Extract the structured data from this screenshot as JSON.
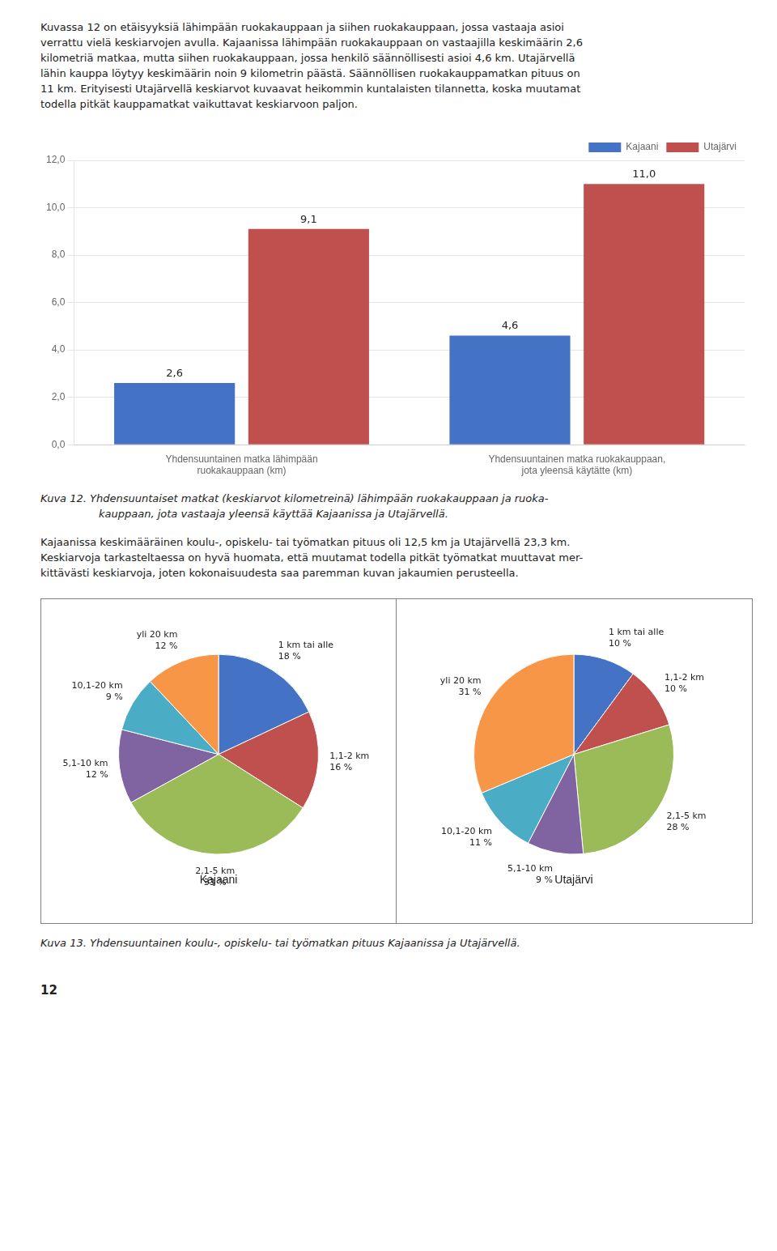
{
  "chart_data": [
    {
      "type": "bar",
      "title": [
        "Kuva 12. Yhdensuuntaiset matkat (keskiarvot kilometreinä) lähimpään ruokakauppaan ja ruoka-",
        "kauppaan, jota vastaaja yleensä käyttää Kajaanissa ja Utajärvellä."
      ],
      "annotations": [
        "Kuvassa 12 on etäisyyksiä lähimpään ruokakauppaan ja siihen ruokakauppaan, jossa vastaaja asioi",
        "verrattu vielä keskiarvojen avulla. Kajaanissa lähimpään ruokakauppaan on vastaajilla keskimäärin 2,6",
        "kilometriä matkaa, mutta siihen ruokakauppaan, jossa henkilö säännöllisesti asioi 4,6 km. Utajärvellä",
        "lähin kauppa löytyy keskimäärin noin 9 kilometrin päästä. Säännöllisen ruokakauppamatkan pituus on",
        "11 km. Erityisesti Utajärvellä keskiarvot kuvaavat heikommin kuntalaisten tilannetta, koska muutamat",
        "todella pitkät kauppamatkat vaikuttavat keskiarvoon paljon."
      ],
      "categories": [
        "Yhdensuuntainen matka lähimpään\nruokakauppaan (km)",
        "Yhdensuuntainen matka ruokakauppaan,\njota yleensä käytätte (km)"
      ],
      "series": [
        {
          "name": "Kajaani",
          "color": "#4472C4",
          "values": [
            2.6,
            4.6
          ],
          "value_labels": [
            "2,6",
            "4,6"
          ]
        },
        {
          "name": "Utajärvi",
          "color": "#C0504D",
          "values": [
            9.1,
            11.0
          ],
          "value_labels": [
            "9,1",
            "11,0"
          ]
        }
      ],
      "ylim": [
        0,
        12
      ],
      "yticks": [
        {
          "value": 0,
          "label": "0,0"
        },
        {
          "value": 2,
          "label": "2,0"
        },
        {
          "value": 4,
          "label": "4,0"
        },
        {
          "value": 6,
          "label": "6,0"
        },
        {
          "value": 8,
          "label": "8,0"
        },
        {
          "value": 10,
          "label": "10,0"
        },
        {
          "value": 12,
          "label": "12,0"
        }
      ],
      "grid": true,
      "legend": "upper right",
      "data_labels": true
    },
    {
      "type": "pie",
      "title": "Kajaani",
      "annotations": [
        "Kajaanissa keskimääräinen koulu-, opiskelu- tai työmatkan pituus oli 12,5 km ja Utajärvellä 23,3 km.",
        "Keskiarvoja tarkasteltaessa on hyvä huomata, että muutamat todella pitkät työmatkat muuttavat mer-",
        "kittävästi keskiarvoja, joten kokonaisuudesta saa paremman kuvan jakaumien perusteella."
      ],
      "categories": [
        "1 km tai alle",
        "1,1-2 km",
        "2,1-5 km",
        "5,1-10 km",
        "10,1-20 km",
        "yli 20 km"
      ],
      "values": [
        18,
        16,
        33,
        12,
        9,
        12
      ],
      "value_labels": [
        "18 %",
        "16 %",
        "33 %",
        "12 %",
        "9 %",
        "12 %"
      ],
      "colors": [
        "#4472C4",
        "#C0504D",
        "#9BBB59",
        "#8064A2",
        "#4BACC6",
        "#F79646"
      ],
      "data_labels": true
    },
    {
      "type": "pie",
      "title": "Utajärvi",
      "annotations": [
        "Kuva 13. Yhdensuuntainen koulu-, opiskelu- tai työmatkan pituus Kajaanissa ja Utajärvellä.",
        "12"
      ],
      "categories": [
        "1 km tai alle",
        "1,1-2 km",
        "2,1-5 km",
        "5,1-10 km",
        "10,1-20 km",
        "yli 20 km"
      ],
      "values": [
        10,
        10,
        28,
        9,
        11,
        31
      ],
      "value_labels": [
        "10 %",
        "10 %",
        "28 %",
        "9 %",
        "11 %",
        "31 %"
      ],
      "colors": [
        "#4472C4",
        "#C0504D",
        "#9BBB59",
        "#8064A2",
        "#4BACC6",
        "#F79646"
      ],
      "data_labels": true
    }
  ]
}
